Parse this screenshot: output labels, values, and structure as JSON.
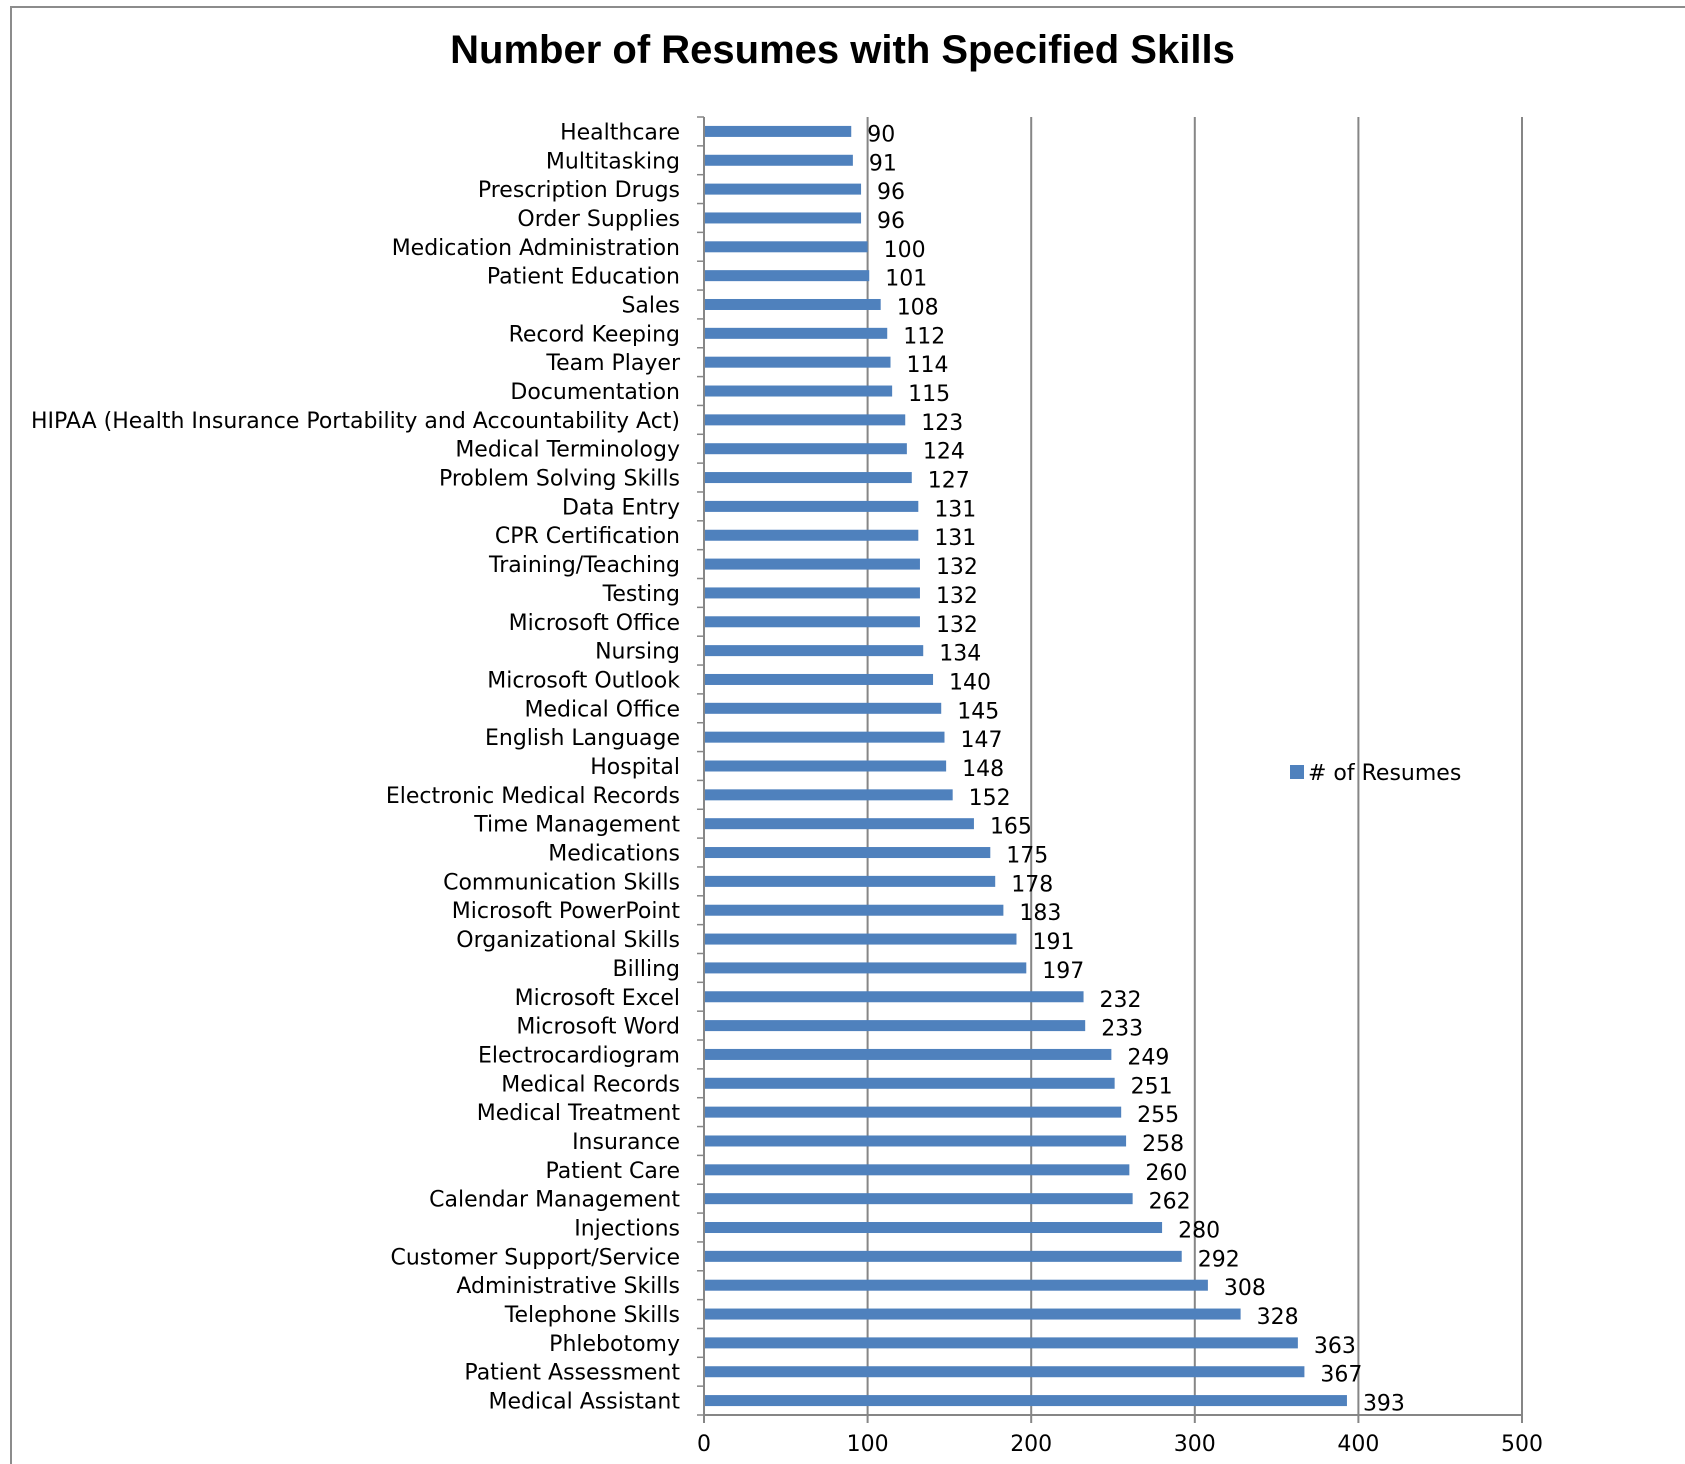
{
  "chart_data": {
    "type": "bar",
    "orientation": "horizontal",
    "title": "Number of Resumes with Specified Skills",
    "xlabel": "",
    "ylabel": "",
    "xlim": [
      0,
      500
    ],
    "xticks": [
      0,
      100,
      200,
      300,
      400,
      500
    ],
    "grid": "vertical major gridlines on",
    "legend_position": "right",
    "bar_color": "#4F81BD",
    "series": [
      {
        "name": "# of Resumes",
        "values": [
          90,
          91,
          96,
          96,
          100,
          101,
          108,
          112,
          114,
          115,
          123,
          124,
          127,
          131,
          131,
          132,
          132,
          132,
          134,
          140,
          145,
          147,
          148,
          152,
          165,
          175,
          178,
          183,
          191,
          197,
          232,
          233,
          249,
          251,
          255,
          258,
          260,
          262,
          280,
          292,
          308,
          328,
          363,
          367,
          393
        ]
      }
    ],
    "categories": [
      "Healthcare",
      "Multitasking",
      "Prescription Drugs",
      "Order Supplies",
      "Medication Administration",
      "Patient Education",
      "Sales",
      "Record Keeping",
      "Team Player",
      "Documentation",
      "HIPAA (Health Insurance Portability and Accountability Act)",
      "Medical Terminology",
      "Problem Solving Skills",
      "Data Entry",
      "CPR Certification",
      "Training/Teaching",
      "Testing",
      "Microsoft Office",
      "Nursing",
      "Microsoft Outlook",
      "Medical Office",
      "English Language",
      "Hospital",
      "Electronic Medical Records",
      "Time Management",
      "Medications",
      "Communication Skills",
      "Microsoft PowerPoint",
      "Organizational Skills",
      "Billing",
      "Microsoft Excel",
      "Microsoft Word",
      "Electrocardiogram",
      "Medical Records",
      "Medical Treatment",
      "Insurance",
      "Patient Care",
      "Calendar Management",
      "Injections",
      "Customer Support/Service",
      "Administrative Skills",
      "Telephone Skills",
      "Phlebotomy",
      "Patient Assessment",
      "Medical Assistant"
    ]
  }
}
